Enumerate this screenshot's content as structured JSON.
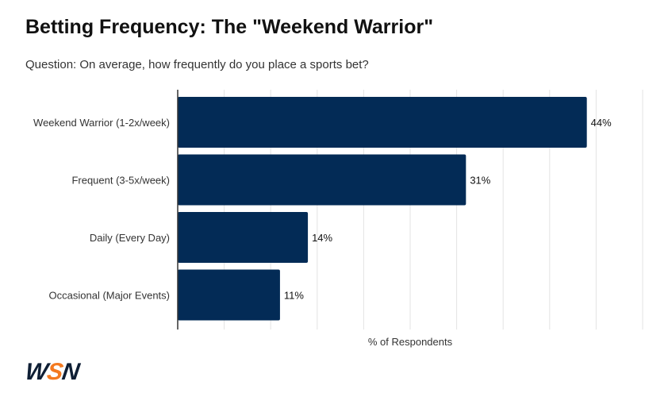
{
  "chart_data": {
    "type": "bar",
    "orientation": "horizontal",
    "title": "Betting Frequency: The \"Weekend Warrior\"",
    "subtitle": "Question: On average, how frequently do you place a sports bet?",
    "categories": [
      "Weekend Warrior (1-2x/week)",
      "Frequent (3-5x/week)",
      "Daily (Every Day)",
      "Occasional (Major Events)"
    ],
    "values": [
      44,
      31,
      14,
      11
    ],
    "data_labels": [
      "44%",
      "31%",
      "14%",
      "11%"
    ],
    "xlabel": "% of Respondents",
    "ylabel": "",
    "xlim": [
      0,
      50
    ],
    "grid": true,
    "bar_color": "#032b56"
  },
  "logo": {
    "text_left": "W",
    "text_mid": "S",
    "text_right": "N",
    "accent": "#f47a20"
  }
}
